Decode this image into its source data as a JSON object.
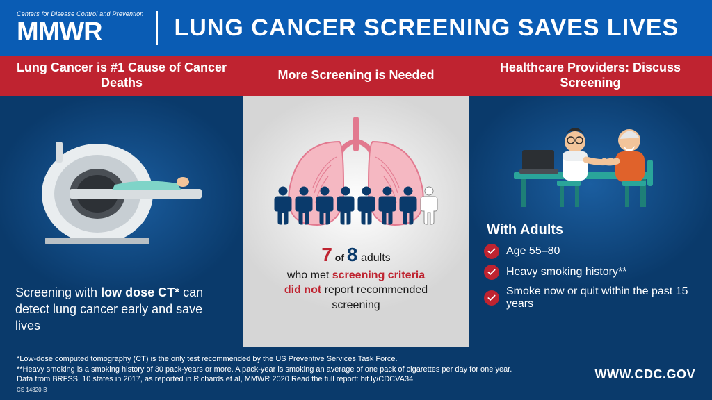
{
  "header": {
    "brand_small": "Centers for Disease Control and Prevention",
    "brand_big": "MMWR",
    "title": "LUNG CANCER SCREENING SAVES LIVES"
  },
  "colors": {
    "blue_header": "#0a5cb4",
    "blue_dark": "#0a3a6b",
    "red": "#bf2330",
    "grey_panel": "#d6d6d6",
    "lung_pink": "#f5b8c2",
    "lung_stroke": "#e2798f",
    "person_dark": "#0a3a6b",
    "person_light": "#ffffff"
  },
  "panels": {
    "p1": {
      "headline": "Lung Cancer is #1 Cause of Cancer Deaths",
      "body_prefix": "Screening with ",
      "body_bold": "low dose CT*",
      "body_suffix": " can detect lung cancer early and save lives"
    },
    "p2": {
      "headline": "More Screening is Needed",
      "stat_numerator": "7",
      "stat_conj": " of ",
      "stat_denominator": "8",
      "stat_unit": " adults",
      "line2_prefix": "who met ",
      "line2_emph": "screening criteria",
      "line3_emph": "did not",
      "line3_suffix": " report recommended screening",
      "people_total": 8,
      "people_unscreened": 7
    },
    "p3": {
      "headline": "Healthcare Providers: Discuss Screening",
      "subhead": "With Adults",
      "bullets": [
        "Age 55–80",
        "Heavy smoking history**",
        "Smoke now or quit within the past 15 years"
      ]
    }
  },
  "footer": {
    "line1": "*Low-dose computed tomography (CT) is the only test recommended by the US Preventive Services Task Force.",
    "line2": "**Heavy smoking is a smoking history of 30 pack-years or more. A pack-year is smoking an average of one pack of cigarettes per day for one year.",
    "line3": "Data from BRFSS, 10 states in 2017, as reported in Richards et al, MMWR 2020 Read the full report: bit.ly/CDCVA34",
    "cs": "CS 14820-B",
    "url": "WWW.CDC.GOV"
  }
}
